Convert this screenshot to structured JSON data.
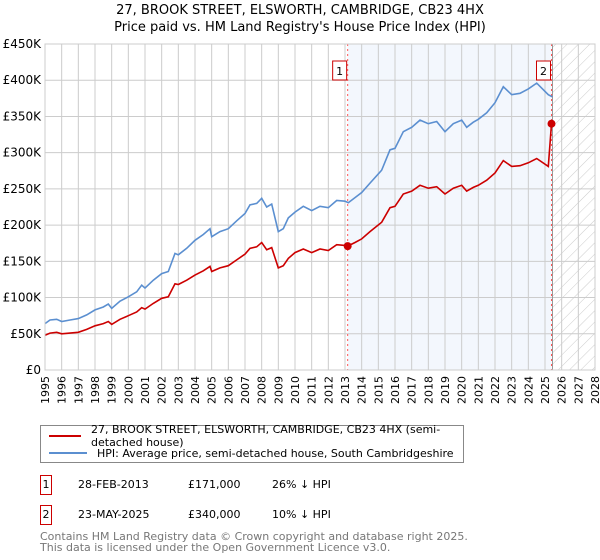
{
  "title": "27, BROOK STREET, ELSWORTH, CAMBRIDGE, CB23 4HX",
  "subtitle": "Price paid vs. HM Land Registry's House Price Index (HPI)",
  "legend": [
    {
      "label": "27, BROOK STREET, ELSWORTH, CAMBRIDGE, CB23 4HX (semi-detached house)",
      "color": "#cc0000"
    },
    {
      "label": "HPI: Average price, semi-detached house, South Cambridgeshire",
      "color": "#5b8fd0"
    }
  ],
  "transactions": [
    {
      "num": "1",
      "date": "28-FEB-2013",
      "price": "£171,000",
      "hpi": "26% ↓ HPI"
    },
    {
      "num": "2",
      "date": "23-MAY-2025",
      "price": "£340,000",
      "hpi": "10% ↓ HPI"
    }
  ],
  "footer": [
    "Contains HM Land Registry data © Crown copyright and database right 2025.",
    "This data is licensed under the Open Government Licence v3.0."
  ],
  "chart_data": {
    "type": "line",
    "title": "27, BROOK STREET, ELSWORTH, CAMBRIDGE, CB23 4HX",
    "xlim": [
      1995,
      2028
    ],
    "ylim": [
      0,
      450000
    ],
    "grid": true,
    "xticks": [
      "1995",
      "1996",
      "1997",
      "1998",
      "1999",
      "2000",
      "2001",
      "2002",
      "2003",
      "2004",
      "2005",
      "2006",
      "2007",
      "2008",
      "2009",
      "2010",
      "2011",
      "2012",
      "2013",
      "2014",
      "2015",
      "2016",
      "2017",
      "2018",
      "2019",
      "2020",
      "2021",
      "2022",
      "2023",
      "2024",
      "2025",
      "2026",
      "2027",
      "2028"
    ],
    "yticks": [
      {
        "v": 0,
        "label": "£0"
      },
      {
        "v": 50000,
        "label": "£50K"
      },
      {
        "v": 100000,
        "label": "£100K"
      },
      {
        "v": 150000,
        "label": "£150K"
      },
      {
        "v": 200000,
        "label": "£200K"
      },
      {
        "v": 250000,
        "label": "£250K"
      },
      {
        "v": 300000,
        "label": "£300K"
      },
      {
        "v": 350000,
        "label": "£350K"
      },
      {
        "v": 400000,
        "label": "£400K"
      },
      {
        "v": 450000,
        "label": "£450K"
      }
    ],
    "shaded_period": [
      2013.16,
      2025.39
    ],
    "forecast_hatch_from": 2025.45,
    "markers": [
      {
        "label": "1",
        "x": 2013.16,
        "y": 171000
      },
      {
        "label": "2",
        "x": 2025.39,
        "y": 340000
      }
    ],
    "series": [
      {
        "name": "HPI",
        "color": "#5b8fd0",
        "points": [
          [
            1995.0,
            64000
          ],
          [
            1995.3,
            69000
          ],
          [
            1995.7,
            70000
          ],
          [
            1996.0,
            67000
          ],
          [
            1996.5,
            69000
          ],
          [
            1997.0,
            71000
          ],
          [
            1997.5,
            76000
          ],
          [
            1998.0,
            83000
          ],
          [
            1998.5,
            87000
          ],
          [
            1998.8,
            91000
          ],
          [
            1999.0,
            85000
          ],
          [
            1999.5,
            95000
          ],
          [
            2000.0,
            101000
          ],
          [
            2000.5,
            108000
          ],
          [
            2000.8,
            117000
          ],
          [
            2001.0,
            113000
          ],
          [
            2001.5,
            124000
          ],
          [
            2002.0,
            133000
          ],
          [
            2002.4,
            136000
          ],
          [
            2002.8,
            161000
          ],
          [
            2003.0,
            159000
          ],
          [
            2003.5,
            168000
          ],
          [
            2004.0,
            179000
          ],
          [
            2004.5,
            187000
          ],
          [
            2004.9,
            195000
          ],
          [
            2005.0,
            184000
          ],
          [
            2005.5,
            191000
          ],
          [
            2006.0,
            195000
          ],
          [
            2006.5,
            206000
          ],
          [
            2007.0,
            216000
          ],
          [
            2007.3,
            228000
          ],
          [
            2007.7,
            230000
          ],
          [
            2008.0,
            237000
          ],
          [
            2008.3,
            225000
          ],
          [
            2008.6,
            229000
          ],
          [
            2009.0,
            191000
          ],
          [
            2009.3,
            195000
          ],
          [
            2009.6,
            210000
          ],
          [
            2010.0,
            218000
          ],
          [
            2010.5,
            226000
          ],
          [
            2011.0,
            220000
          ],
          [
            2011.5,
            226000
          ],
          [
            2012.0,
            224000
          ],
          [
            2012.5,
            234000
          ],
          [
            2013.0,
            233000
          ],
          [
            2013.2,
            231000
          ],
          [
            2013.6,
            238000
          ],
          [
            2014.0,
            245000
          ],
          [
            2014.5,
            258000
          ],
          [
            2015.2,
            276000
          ],
          [
            2015.7,
            304000
          ],
          [
            2016.0,
            306000
          ],
          [
            2016.5,
            329000
          ],
          [
            2017.0,
            335000
          ],
          [
            2017.5,
            345000
          ],
          [
            2018.0,
            340000
          ],
          [
            2018.5,
            343000
          ],
          [
            2019.0,
            329000
          ],
          [
            2019.5,
            340000
          ],
          [
            2020.0,
            345000
          ],
          [
            2020.3,
            335000
          ],
          [
            2020.7,
            342000
          ],
          [
            2021.0,
            346000
          ],
          [
            2021.5,
            355000
          ],
          [
            2022.0,
            369000
          ],
          [
            2022.5,
            391000
          ],
          [
            2023.0,
            380000
          ],
          [
            2023.5,
            382000
          ],
          [
            2024.0,
            388000
          ],
          [
            2024.5,
            396000
          ],
          [
            2025.2,
            380000
          ],
          [
            2025.45,
            377000
          ]
        ]
      },
      {
        "name": "Price paid",
        "color": "#cc0000",
        "points": [
          [
            1995.0,
            48000
          ],
          [
            1995.3,
            51000
          ],
          [
            1995.7,
            52000
          ],
          [
            1996.0,
            50000
          ],
          [
            1996.5,
            51000
          ],
          [
            1997.0,
            52000
          ],
          [
            1997.5,
            56000
          ],
          [
            1998.0,
            61000
          ],
          [
            1998.5,
            64000
          ],
          [
            1998.8,
            67000
          ],
          [
            1999.0,
            63000
          ],
          [
            1999.5,
            70000
          ],
          [
            2000.0,
            75000
          ],
          [
            2000.5,
            80000
          ],
          [
            2000.8,
            86000
          ],
          [
            2001.0,
            84000
          ],
          [
            2001.5,
            92000
          ],
          [
            2002.0,
            99000
          ],
          [
            2002.4,
            101000
          ],
          [
            2002.8,
            119000
          ],
          [
            2003.0,
            118000
          ],
          [
            2003.5,
            124000
          ],
          [
            2004.0,
            131000
          ],
          [
            2004.5,
            137000
          ],
          [
            2004.9,
            143000
          ],
          [
            2005.0,
            136000
          ],
          [
            2005.5,
            141000
          ],
          [
            2006.0,
            144000
          ],
          [
            2006.5,
            152000
          ],
          [
            2007.0,
            160000
          ],
          [
            2007.3,
            168000
          ],
          [
            2007.7,
            170000
          ],
          [
            2008.0,
            176000
          ],
          [
            2008.3,
            166000
          ],
          [
            2008.6,
            169000
          ],
          [
            2009.0,
            141000
          ],
          [
            2009.3,
            144000
          ],
          [
            2009.6,
            154000
          ],
          [
            2010.0,
            162000
          ],
          [
            2010.5,
            167000
          ],
          [
            2011.0,
            162000
          ],
          [
            2011.5,
            167000
          ],
          [
            2012.0,
            165000
          ],
          [
            2012.5,
            173000
          ],
          [
            2013.0,
            172000
          ],
          [
            2013.16,
            171000
          ],
          [
            2013.6,
            176000
          ],
          [
            2014.0,
            181000
          ],
          [
            2014.5,
            191000
          ],
          [
            2015.2,
            204000
          ],
          [
            2015.7,
            224000
          ],
          [
            2016.0,
            226000
          ],
          [
            2016.5,
            243000
          ],
          [
            2017.0,
            247000
          ],
          [
            2017.5,
            255000
          ],
          [
            2018.0,
            251000
          ],
          [
            2018.5,
            253000
          ],
          [
            2019.0,
            243000
          ],
          [
            2019.5,
            251000
          ],
          [
            2020.0,
            255000
          ],
          [
            2020.3,
            247000
          ],
          [
            2020.7,
            252000
          ],
          [
            2021.0,
            255000
          ],
          [
            2021.5,
            262000
          ],
          [
            2022.0,
            272000
          ],
          [
            2022.5,
            289000
          ],
          [
            2023.0,
            281000
          ],
          [
            2023.5,
            282000
          ],
          [
            2024.0,
            286000
          ],
          [
            2024.5,
            292000
          ],
          [
            2025.2,
            281000
          ],
          [
            2025.39,
            340000
          ]
        ]
      }
    ]
  }
}
